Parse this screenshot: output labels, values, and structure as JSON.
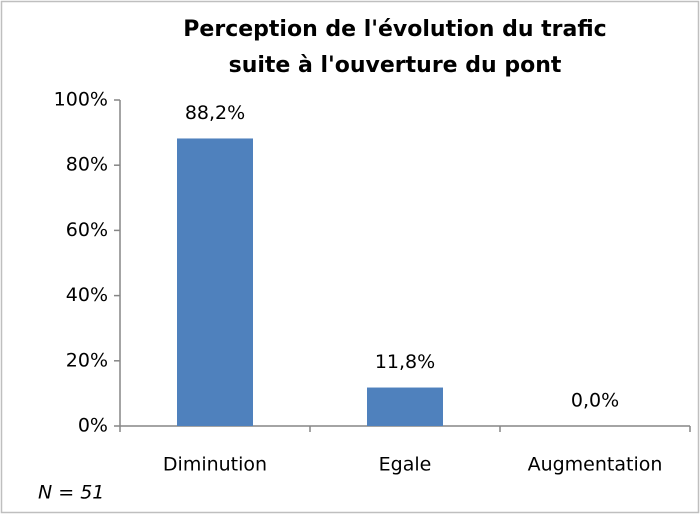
{
  "chart_data": {
    "type": "bar",
    "title": "Perception de l'évolution du trafic\nsuite à l'ouverture du pont",
    "categories": [
      "Diminution",
      "Egale",
      "Augmentation"
    ],
    "values": [
      88.2,
      11.8,
      0.0
    ],
    "value_labels": [
      "88,2%",
      "11,8%",
      "0,0%"
    ],
    "color": "#4f81bd",
    "ylim": [
      0,
      100
    ],
    "yticks": [
      {
        "value": 0,
        "label": "0%"
      },
      {
        "value": 20,
        "label": "20%"
      },
      {
        "value": 40,
        "label": "40%"
      },
      {
        "value": 60,
        "label": "60%"
      },
      {
        "value": 80,
        "label": "80%"
      },
      {
        "value": 100,
        "label": "100%"
      }
    ],
    "grid": false,
    "annotation": "N = 51"
  }
}
